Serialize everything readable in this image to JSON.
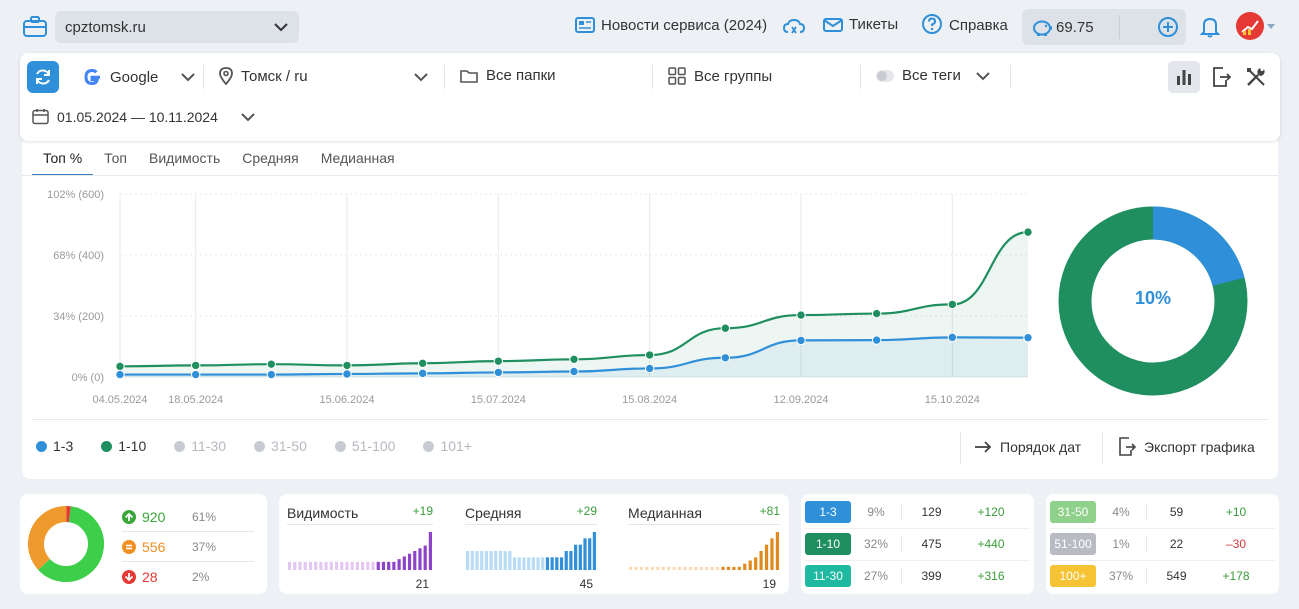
{
  "header": {
    "site": "cpztomsk.ru",
    "news_label": "Новости сервиса (2024)",
    "tickets_label": "Тикеты",
    "help_label": "Справка",
    "balance": "69.75"
  },
  "filters": {
    "engine": "Google",
    "region": "Томск / ru",
    "folders": "Все папки",
    "groups": "Все группы",
    "tags": "Все теги",
    "dates": "01.05.2024 — 10.11.2024"
  },
  "tabs": [
    "Топ %",
    "Топ",
    "Видимость",
    "Средняя",
    "Медианная"
  ],
  "chart_data": {
    "type": "area",
    "x": [
      "04.05.2024",
      "18.05.2024",
      "01.06.2024",
      "15.06.2024",
      "29.06.2024",
      "15.07.2024",
      "29.07.2024",
      "15.08.2024",
      "29.08.2024",
      "12.09.2024",
      "26.09.2024",
      "15.10.2024",
      "01.11.2024"
    ],
    "x_ticks": [
      "04.05.2024",
      "18.05.2024",
      "15.06.2024",
      "15.07.2024",
      "15.08.2024",
      "12.09.2024",
      "15.10.2024"
    ],
    "y_ticks": [
      "0% (0)",
      "34% (200)",
      "68% (400)",
      "102% (600)"
    ],
    "ylim": [
      0,
      600
    ],
    "series": [
      {
        "name": "1-3",
        "color": "#2f8fd8",
        "values": [
          8,
          8,
          8,
          10,
          12,
          15,
          18,
          28,
          63,
          120,
          121,
          130,
          129
        ]
      },
      {
        "name": "1-10",
        "color": "#1f8f5f",
        "values": [
          35,
          38,
          42,
          38,
          45,
          52,
          58,
          72,
          160,
          203,
          208,
          238,
          475
        ]
      }
    ],
    "series_x_idx_fix": [
      0,
      1,
      2,
      3,
      4,
      5,
      6,
      7,
      8,
      9,
      10,
      11,
      12
    ]
  },
  "donut": {
    "label": "10%",
    "blue_share": 0.21,
    "colors": {
      "blue": "#2f8fd8",
      "green": "#1f8f5f"
    }
  },
  "legend": [
    {
      "name": "1-3",
      "color": "#2f8fd8",
      "active": true
    },
    {
      "name": "1-10",
      "color": "#1f8f5f",
      "active": true
    },
    {
      "name": "11-30",
      "color": "#c8ccd2",
      "active": false
    },
    {
      "name": "31-50",
      "color": "#c8ccd2",
      "active": false
    },
    {
      "name": "51-100",
      "color": "#c8ccd2",
      "active": false
    },
    {
      "name": "101+",
      "color": "#c8ccd2",
      "active": false
    }
  ],
  "chart_actions": {
    "order": "Порядок дат",
    "export": "Экспорт графика"
  },
  "summary": {
    "up": {
      "count": "920",
      "pct": "61%"
    },
    "same": {
      "count": "556",
      "pct": "37%"
    },
    "down": {
      "count": "28",
      "pct": "2%"
    },
    "shares": [
      0.61,
      0.37,
      0.02
    ]
  },
  "mini": [
    {
      "title": "Видимость",
      "delta": "+19",
      "value": "21",
      "color": "#8e44c9",
      "light": "#e3c9f2",
      "bars": [
        3,
        3,
        3,
        3,
        3,
        3,
        3,
        3,
        3,
        3,
        3,
        3,
        3,
        3,
        3,
        3,
        3,
        3,
        3,
        3,
        3,
        4,
        5,
        6,
        7,
        8,
        9,
        14
      ]
    },
    {
      "title": "Средняя",
      "delta": "+29",
      "value": "45",
      "color": "#2f8fd8",
      "light": "#b8dcf5",
      "bars": [
        3,
        3,
        3,
        3,
        3,
        3,
        3,
        3,
        3,
        3,
        2,
        2,
        2,
        2,
        2,
        2,
        2,
        2,
        2,
        2,
        2,
        3,
        3,
        4,
        4,
        5,
        5,
        6
      ]
    },
    {
      "title": "Медианная",
      "delta": "+81",
      "value": "19",
      "color": "#e08a1e",
      "light": "#f7dbb5",
      "bars": [
        1,
        1,
        1,
        1,
        1,
        1,
        1,
        1,
        1,
        1,
        1,
        1,
        1,
        1,
        1,
        1,
        1,
        1,
        1,
        1,
        1,
        2,
        3,
        4,
        6,
        8,
        10,
        12
      ]
    }
  ],
  "ranges_left": [
    {
      "name": "1-3",
      "color": "#2f8fd8",
      "pct": "9%",
      "count": "129",
      "delta": "+120",
      "dcolor": "#3a9d3a"
    },
    {
      "name": "1-10",
      "color": "#1f8f5f",
      "pct": "32%",
      "count": "475",
      "delta": "+440",
      "dcolor": "#3a9d3a"
    },
    {
      "name": "11-30",
      "color": "#1fb8a0",
      "pct": "27%",
      "count": "399",
      "delta": "+316",
      "dcolor": "#3a9d3a"
    }
  ],
  "ranges_right": [
    {
      "name": "31-50",
      "color": "#8fd08a",
      "pct": "4%",
      "count": "59",
      "delta": "+10",
      "dcolor": "#3a9d3a"
    },
    {
      "name": "51-100",
      "color": "#b8bcc2",
      "pct": "1%",
      "count": "22",
      "delta": "–30",
      "dcolor": "#d23a3a"
    },
    {
      "name": "100+",
      "color": "#f5c333",
      "pct": "37%",
      "count": "549",
      "delta": "+178",
      "dcolor": "#3a9d3a"
    }
  ]
}
